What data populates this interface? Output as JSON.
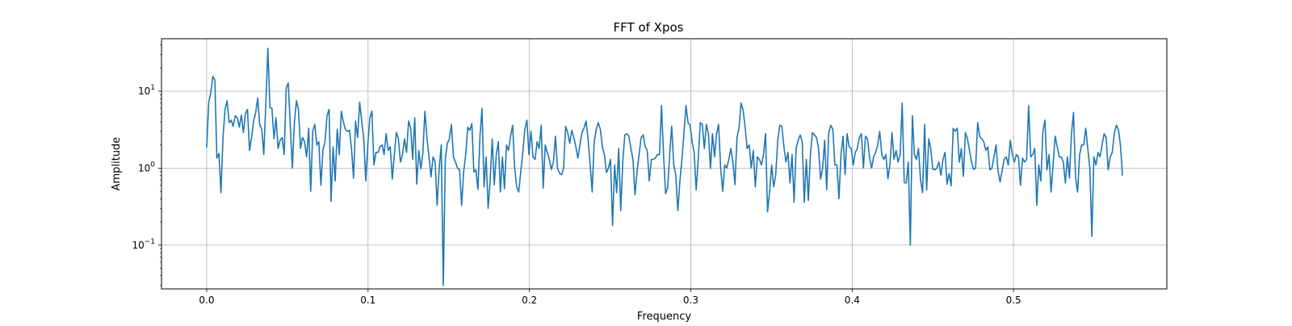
{
  "chart_data": {
    "type": "line",
    "title": "FFT of Xpos",
    "xlabel": "Frequency",
    "ylabel": "Amplitude",
    "xlim": [
      -0.028,
      0.595
    ],
    "ylim": [
      0.027,
      48
    ],
    "yscale": "log",
    "grid": true,
    "x_ticks": [
      {
        "value": 0.0,
        "label": "0.0"
      },
      {
        "value": 0.1,
        "label": "0.1"
      },
      {
        "value": 0.2,
        "label": "0.2"
      },
      {
        "value": 0.3,
        "label": "0.3"
      },
      {
        "value": 0.4,
        "label": "0.4"
      },
      {
        "value": 0.5,
        "label": "0.5"
      }
    ],
    "y_ticks": [
      {
        "value": 0.1,
        "base": "10",
        "exp": "−1"
      },
      {
        "value": 1,
        "base": "10",
        "exp": "0"
      },
      {
        "value": 10,
        "base": "10",
        "exp": "1"
      }
    ],
    "series": [
      {
        "color": "#1f77b4",
        "x_start": 0.0,
        "x_end": 0.5675,
        "values": [
          1.85,
          7.2,
          9.5,
          15.5,
          14.0,
          1.35,
          1.55,
          0.48,
          2.5,
          5.8,
          7.5,
          3.9,
          4.2,
          3.5,
          4.8,
          4.5,
          3.4,
          4.9,
          2.9,
          5.1,
          5.8,
          1.7,
          2.5,
          4.1,
          5.2,
          8.1,
          3.7,
          3.2,
          1.5,
          7.0,
          36.0,
          6.1,
          6.0,
          2.4,
          4.5,
          1.8,
          2.3,
          2.5,
          1.5,
          11.0,
          12.8,
          3.5,
          1.0,
          3.9,
          7.5,
          5.8,
          1.8,
          2.5,
          2.2,
          1.4,
          3.3,
          0.5,
          3.0,
          3.7,
          2.0,
          2.2,
          0.6,
          1.7,
          2.2,
          4.8,
          5.8,
          0.37,
          1.9,
          0.68,
          3.2,
          1.5,
          5.5,
          4.0,
          3.2,
          3.0,
          3.1,
          1.8,
          0.74,
          4.1,
          2.5,
          7.2,
          4.1,
          2.4,
          0.68,
          2.0,
          4.5,
          5.5,
          1.1,
          1.6,
          1.6,
          1.9,
          2.0,
          1.5,
          2.8,
          1.7,
          1.9,
          0.72,
          1.5,
          2.9,
          2.4,
          1.2,
          1.5,
          2.4,
          1.6,
          4.1,
          3.3,
          1.3,
          4.5,
          0.62,
          1.7,
          0.98,
          1.6,
          5.5,
          2.5,
          1.4,
          0.77,
          1.4,
          1.2,
          0.33,
          1.0,
          2.0,
          0.03,
          1.3,
          2.1,
          2.4,
          3.7,
          1.4,
          1.2,
          1.0,
          0.95,
          0.33,
          0.9,
          1.5,
          3.4,
          3.1,
          3.8,
          0.89,
          0.95,
          0.53,
          2.6,
          6.0,
          0.57,
          1.4,
          0.3,
          0.7,
          2.4,
          0.61,
          1.5,
          2.2,
          0.49,
          1.4,
          0.54,
          2.0,
          1.7,
          2.6,
          3.6,
          1.0,
          0.57,
          0.49,
          0.9,
          1.6,
          3.2,
          4.2,
          1.5,
          3.0,
          1.4,
          1.3,
          2.2,
          1.8,
          3.6,
          0.55,
          2.0,
          1.6,
          1.3,
          0.96,
          1.2,
          2.6,
          1.0,
          0.86,
          0.82,
          1.0,
          3.5,
          2.9,
          2.1,
          3.1,
          2.5,
          1.9,
          1.35,
          2.0,
          2.9,
          3.3,
          4.1,
          2.4,
          1.1,
          0.49,
          2.2,
          3.2,
          3.9,
          3.2,
          1.9,
          1.5,
          0.88,
          1.0,
          1.3,
          0.18,
          1.1,
          0.48,
          1.8,
          0.28,
          1.2,
          2.7,
          2.8,
          2.6,
          1.8,
          1.3,
          0.45,
          0.9,
          1.5,
          2.5,
          2.7,
          1.9,
          1.7,
          0.68,
          1.3,
          1.3,
          1.35,
          1.5,
          1.5,
          6.5,
          1.5,
          0.47,
          0.55,
          1.5,
          3.5,
          1.1,
          0.82,
          0.28,
          0.67,
          1.3,
          2.8,
          6.5,
          3.9,
          3.6,
          2.2,
          1.6,
          0.52,
          1.3,
          3.9,
          3.7,
          1.8,
          3.7,
          2.8,
          0.99,
          2.8,
          1.4,
          2.8,
          3.7,
          1.0,
          0.5,
          1.1,
          1.0,
          1.3,
          1.8,
          1.2,
          0.61,
          2.5,
          3.3,
          7.0,
          5.7,
          3.4,
          1.8,
          2.0,
          1.0,
          1.7,
          0.57,
          1.4,
          1.3,
          1.1,
          1.5,
          2.8,
          0.27,
          0.49,
          1.1,
          0.57,
          0.82,
          2.3,
          3.6,
          3.5,
          1.9,
          1.2,
          1.6,
          0.64,
          1.5,
          0.36,
          1.8,
          2.3,
          2.7,
          2.2,
          0.36,
          1.3,
          0.38,
          1.5,
          2.9,
          2.7,
          2.5,
          1.8,
          0.72,
          1.0,
          2.3,
          0.53,
          2.9,
          3.6,
          3.2,
          1.1,
          1.1,
          0.4,
          1.5,
          2.6,
          0.83,
          2.8,
          1.9,
          1.8,
          1.1,
          1.6,
          1.8,
          2.5,
          2.8,
          1.0,
          2.6,
          2.4,
          1.4,
          1.0,
          1.4,
          1.6,
          2.0,
          3.0,
          1.5,
          1.3,
          1.5,
          0.73,
          1.1,
          2.9,
          1.3,
          1.7,
          1.2,
          1.5,
          7.0,
          0.65,
          0.64,
          1.2,
          0.1,
          4.8,
          1.5,
          1.3,
          1.8,
          0.7,
          0.48,
          3.7,
          0.52,
          2.4,
          1.8,
          0.97,
          0.95,
          1.0,
          1.2,
          0.81,
          1.3,
          1.6,
          0.62,
          0.85,
          0.59,
          3.3,
          3.0,
          3.3,
          1.2,
          1.8,
          0.78,
          2.9,
          2.4,
          1.7,
          1.2,
          0.96,
          1.0,
          3.9,
          2.6,
          2.4,
          2.2,
          1.7,
          1.9,
          0.95,
          1.0,
          1.4,
          2.0,
          0.92,
          0.66,
          0.93,
          1.3,
          1.4,
          1.1,
          2.3,
          1.5,
          1.2,
          1.5,
          1.4,
          0.6,
          1.35,
          1.2,
          1.3,
          6.5,
          1.4,
          1.5,
          1.8,
          0.33,
          1.1,
          0.68,
          3.0,
          4.2,
          0.95,
          1.5,
          0.49,
          1.1,
          2.6,
          1.9,
          1.4,
          1.4,
          1.2,
          0.64,
          1.4,
          0.74,
          2.8,
          5.3,
          0.75,
          0.49,
          1.5,
          2.0,
          2.0,
          3.3,
          1.8,
          1.0,
          0.13,
          1.4,
          1.1,
          1.6,
          1.4,
          2.0,
          2.8,
          2.5,
          0.95,
          1.4,
          1.6,
          2.8,
          3.6,
          3.2,
          2.0,
          0.8
        ]
      }
    ]
  }
}
